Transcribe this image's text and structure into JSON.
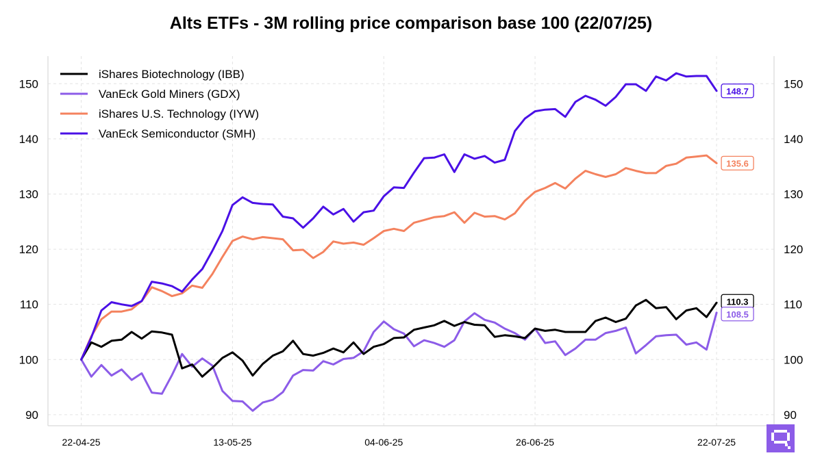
{
  "chart_data": {
    "type": "line",
    "title": "Alts ETFs - 3M rolling price comparison base 100 (22/07/25)",
    "xlabel": "",
    "ylabel": "",
    "ylim": [
      88,
      155
    ],
    "yticks": [
      90,
      100,
      110,
      120,
      130,
      140,
      150
    ],
    "y_tick_labels": [
      "90",
      "100",
      "110",
      "120",
      "130",
      "140",
      "150"
    ],
    "x_tick_labels": [
      "22-04-25",
      "13-05-25",
      "04-06-25",
      "26-06-25",
      "22-07-25"
    ],
    "x_tick_positions": [
      0,
      15,
      30,
      45,
      63
    ],
    "xlim": [
      -3.3,
      68.7
    ],
    "grid": true,
    "legend_placement": "top-left",
    "series": [
      {
        "name": "iShares Biotechnology (IBB)",
        "color": "#000000",
        "end_label": "110.3",
        "values": [
          100.0,
          103.1,
          102.3,
          103.4,
          103.6,
          105.0,
          103.8,
          105.1,
          104.9,
          104.5,
          98.4,
          99.1,
          96.9,
          98.5,
          100.3,
          101.3,
          99.8,
          97.1,
          99.2,
          100.7,
          101.5,
          103.4,
          101.0,
          100.7,
          101.2,
          102.0,
          101.3,
          103.1,
          101.0,
          102.3,
          102.8,
          103.9,
          104.0,
          105.4,
          105.8,
          106.2,
          107.0,
          106.1,
          106.8,
          106.3,
          106.2,
          104.1,
          104.4,
          104.2,
          103.9,
          105.6,
          105.2,
          105.4,
          105.0,
          105.0,
          105.0,
          107.0,
          107.6,
          106.8,
          107.4,
          109.8,
          110.8,
          109.3,
          109.5,
          107.3,
          108.9,
          109.3,
          107.7,
          110.3
        ]
      },
      {
        "name": "VanEck Gold Miners (GDX)",
        "color": "#8c5ce8",
        "end_label": "108.5",
        "values": [
          100.0,
          96.9,
          99.0,
          97.1,
          98.2,
          96.3,
          97.5,
          94.0,
          93.8,
          97.2,
          101.0,
          98.7,
          100.2,
          98.9,
          94.3,
          92.5,
          92.4,
          90.7,
          92.2,
          92.7,
          94.1,
          97.1,
          98.1,
          98.0,
          99.7,
          99.1,
          100.1,
          100.3,
          101.5,
          105.0,
          106.9,
          105.5,
          104.7,
          102.4,
          103.5,
          103.0,
          102.3,
          103.5,
          106.9,
          108.4,
          107.2,
          106.7,
          105.6,
          104.8,
          103.6,
          105.6,
          103.0,
          103.3,
          100.8,
          102.0,
          103.6,
          103.6,
          104.8,
          105.2,
          105.8,
          101.1,
          102.6,
          104.2,
          104.4,
          104.5,
          102.7,
          103.1,
          101.8,
          108.5
        ]
      },
      {
        "name": "iShares U.S. Technology (IYW)",
        "color": "#f4825e",
        "end_label": "135.6",
        "values": [
          100.0,
          104.2,
          107.3,
          108.7,
          108.7,
          109.1,
          110.6,
          113.1,
          112.4,
          111.5,
          112.0,
          113.4,
          113.0,
          115.5,
          118.6,
          121.5,
          122.3,
          121.8,
          122.2,
          122.0,
          121.8,
          119.8,
          119.9,
          118.4,
          119.5,
          121.4,
          121.0,
          121.2,
          120.8,
          122.0,
          123.3,
          123.7,
          123.3,
          124.8,
          125.3,
          125.8,
          126.0,
          126.7,
          124.8,
          126.6,
          125.9,
          126.0,
          125.4,
          126.5,
          128.8,
          130.4,
          131.1,
          132.0,
          131.0,
          132.8,
          134.2,
          133.6,
          133.1,
          133.6,
          134.7,
          134.2,
          133.8,
          133.8,
          135.1,
          135.5,
          136.6,
          136.8,
          137.0,
          135.6
        ]
      },
      {
        "name": "VanEck Semiconductor (SMH)",
        "color": "#4a10e6",
        "end_label": "148.7",
        "values": [
          100.0,
          104.0,
          108.9,
          110.4,
          110.0,
          109.7,
          110.6,
          114.1,
          113.8,
          113.3,
          112.3,
          114.5,
          116.4,
          119.7,
          123.3,
          128.0,
          129.4,
          128.4,
          128.2,
          128.1,
          125.9,
          125.6,
          123.9,
          125.6,
          127.7,
          126.3,
          127.3,
          125.0,
          126.7,
          127.0,
          129.6,
          131.2,
          131.1,
          133.9,
          136.5,
          136.6,
          137.2,
          134.0,
          137.2,
          136.4,
          136.9,
          135.7,
          136.2,
          141.4,
          143.7,
          145.0,
          145.3,
          145.4,
          144.0,
          146.7,
          147.8,
          147.1,
          146.0,
          147.6,
          149.9,
          149.9,
          148.7,
          151.3,
          150.6,
          151.9,
          151.3,
          151.4,
          151.4,
          148.7
        ]
      }
    ]
  },
  "logo": {
    "name": "brand-logo",
    "color": "#8c5ce8"
  }
}
